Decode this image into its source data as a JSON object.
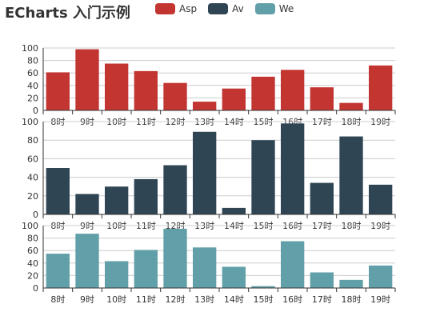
{
  "title": "ECharts 入门示例",
  "legend": [
    {
      "name": "Asp",
      "color": "#c23531"
    },
    {
      "name": "Av",
      "color": "#2f4554"
    },
    {
      "name": "We",
      "color": "#61a0a8"
    }
  ],
  "chart_data": [
    {
      "type": "bar",
      "title": "ECharts 入门示例",
      "categories": [
        "8时",
        "9时",
        "10时",
        "11时",
        "12时",
        "13时",
        "14时",
        "15时",
        "16时",
        "17时",
        "18时",
        "19时"
      ],
      "series": [
        {
          "name": "Asp",
          "color": "#c23531",
          "values": [
            61,
            98,
            75,
            63,
            44,
            14,
            35,
            54,
            65,
            37,
            12,
            72
          ]
        }
      ],
      "ylim": [
        0,
        100
      ],
      "yticks": [
        0,
        20,
        40,
        60,
        80,
        100
      ],
      "grid": true,
      "legend_position": "top"
    },
    {
      "type": "bar",
      "categories": [
        "8时",
        "9时",
        "10时",
        "11时",
        "12时",
        "13时",
        "14时",
        "15时",
        "16时",
        "17时",
        "18时",
        "19时"
      ],
      "series": [
        {
          "name": "Av",
          "color": "#2f4554",
          "values": [
            50,
            22,
            30,
            38,
            53,
            89,
            7,
            80,
            98,
            34,
            84,
            32
          ]
        }
      ],
      "ylim": [
        0,
        100
      ],
      "yticks": [
        0,
        20,
        40,
        60,
        80,
        100
      ],
      "grid": true
    },
    {
      "type": "bar",
      "categories": [
        "8时",
        "9时",
        "10时",
        "11时",
        "12时",
        "13时",
        "14时",
        "15时",
        "16时",
        "17时",
        "18时",
        "19时"
      ],
      "series": [
        {
          "name": "We",
          "color": "#61a0a8",
          "values": [
            55,
            87,
            43,
            61,
            95,
            65,
            34,
            3,
            75,
            25,
            13,
            36
          ]
        }
      ],
      "ylim": [
        0,
        100
      ],
      "yticks": [
        0,
        20,
        40,
        60,
        80,
        100
      ],
      "grid": true
    }
  ]
}
